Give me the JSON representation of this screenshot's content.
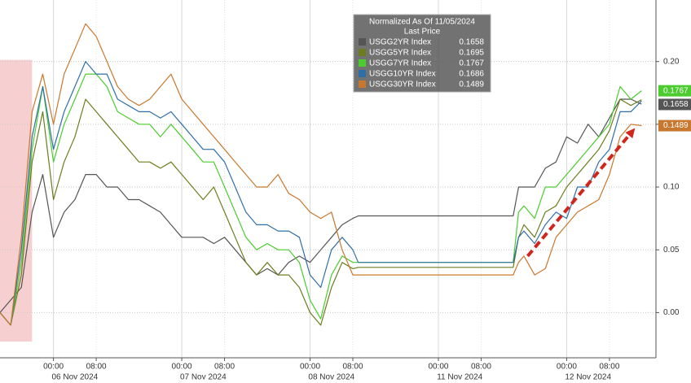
{
  "chart_data": {
    "type": "line",
    "legend": {
      "title": "Normalized As Of 11/05/2024",
      "subtitle": "Last Price",
      "corner": "top-right"
    },
    "x": [
      -10,
      -8,
      -6,
      -4,
      -2,
      0,
      2,
      4,
      6,
      8,
      10,
      12,
      14,
      16,
      18,
      20,
      22,
      24,
      26,
      28,
      30,
      32,
      34,
      36,
      38,
      40,
      42,
      44,
      46,
      48,
      50,
      52,
      54,
      56,
      57,
      86,
      87,
      88,
      90,
      92,
      94,
      96,
      98,
      100,
      102,
      104,
      106,
      108,
      110
    ],
    "xlim": [
      -10,
      112.7
    ],
    "xticks": [
      {
        "value": 0,
        "label": "00:00"
      },
      {
        "value": 8,
        "label": "08:00"
      },
      {
        "value": 24,
        "label": "00:00"
      },
      {
        "value": 32,
        "label": "08:00"
      },
      {
        "value": 48,
        "label": "00:00"
      },
      {
        "value": 56,
        "label": "08:00"
      },
      {
        "value": 72,
        "label": "00:00"
      },
      {
        "value": 80,
        "label": "08:00"
      },
      {
        "value": 96,
        "label": "00:00"
      },
      {
        "value": 104,
        "label": "08:00"
      }
    ],
    "xdates": [
      {
        "value": 4,
        "label": "06 Nov 2024"
      },
      {
        "value": 28,
        "label": "07 Nov 2024"
      },
      {
        "value": 52,
        "label": "08 Nov 2024"
      },
      {
        "value": 76,
        "label": "11 Nov 2024"
      },
      {
        "value": 100,
        "label": "12 Nov 2024"
      }
    ],
    "ylim": [
      -0.036,
      0.249
    ],
    "yticks": [
      {
        "value": 0,
        "label": "0.00"
      },
      0.05,
      {
        "value": 0.1,
        "label": "0.10"
      },
      0.15,
      {
        "value": 0.2,
        "label": "0.20"
      }
    ],
    "grid": true,
    "shade": [
      -10,
      -4
    ],
    "arrow": {
      "x": [
        88.7,
        108.8
      ],
      "y": [
        0.045,
        0.147
      ],
      "color": "#d0261c"
    },
    "series": [
      {
        "name": "USGG2YR Index",
        "color": "#555555",
        "last": 0.1658,
        "tag": true,
        "values": [
          0,
          0.01,
          0.02,
          0.08,
          0.11,
          0.06,
          0.08,
          0.09,
          0.11,
          0.11,
          0.1,
          0.1,
          0.09,
          0.09,
          0.085,
          0.08,
          0.07,
          0.06,
          0.06,
          0.06,
          0.055,
          0.06,
          0.05,
          0.04,
          0.03,
          0.035,
          0.03,
          0.04,
          0.045,
          0.04,
          0.05,
          0.06,
          0.07,
          0.075,
          0.077,
          0.077,
          0.1,
          0.1,
          0.1,
          0.115,
          0.12,
          0.14,
          0.135,
          0.15,
          0.14,
          0.155,
          0.17,
          0.17,
          0.166
        ]
      },
      {
        "name": "USGG5YR Index",
        "color": "#6b7d1e",
        "last": 0.1695,
        "tag": false,
        "values": [
          0,
          -0.01,
          0.03,
          0.12,
          0.16,
          0.09,
          0.12,
          0.14,
          0.17,
          0.16,
          0.15,
          0.14,
          0.13,
          0.12,
          0.12,
          0.115,
          0.12,
          0.11,
          0.1,
          0.09,
          0.1,
          0.08,
          0.06,
          0.04,
          0.03,
          0.04,
          0.03,
          0.03,
          0.02,
          0.0,
          -0.01,
          0.02,
          0.04,
          0.035,
          0.036,
          0.036,
          0.06,
          0.07,
          0.06,
          0.08,
          0.085,
          0.1,
          0.11,
          0.12,
          0.13,
          0.145,
          0.17,
          0.165,
          0.1695
        ]
      },
      {
        "name": "USGG7YR Index",
        "color": "#4ccc2e",
        "last": 0.1767,
        "tag": true,
        "values": [
          0,
          -0.01,
          0.04,
          0.13,
          0.18,
          0.12,
          0.15,
          0.17,
          0.19,
          0.19,
          0.18,
          0.16,
          0.155,
          0.15,
          0.15,
          0.14,
          0.15,
          0.14,
          0.13,
          0.12,
          0.12,
          0.1,
          0.08,
          0.06,
          0.05,
          0.055,
          0.05,
          0.05,
          0.04,
          0.01,
          -0.005,
          0.03,
          0.045,
          0.04,
          0.04,
          0.04,
          0.08,
          0.085,
          0.075,
          0.1,
          0.1,
          0.11,
          0.12,
          0.13,
          0.14,
          0.15,
          0.18,
          0.17,
          0.1767
        ]
      },
      {
        "name": "USGG10YR Index",
        "color": "#2f6fa8",
        "last": 0.1686,
        "tag": false,
        "values": [
          0,
          -0.01,
          0.05,
          0.14,
          0.18,
          0.13,
          0.16,
          0.18,
          0.2,
          0.19,
          0.19,
          0.17,
          0.165,
          0.16,
          0.16,
          0.155,
          0.16,
          0.15,
          0.14,
          0.13,
          0.13,
          0.12,
          0.1,
          0.08,
          0.07,
          0.07,
          0.065,
          0.065,
          0.06,
          0.03,
          0.02,
          0.05,
          0.06,
          0.05,
          0.04,
          0.04,
          0.06,
          0.065,
          0.055,
          0.07,
          0.08,
          0.075,
          0.1,
          0.1,
          0.12,
          0.13,
          0.16,
          0.16,
          0.1686
        ]
      },
      {
        "name": "USGG30YR Index",
        "color": "#c8782e",
        "last": 0.1489,
        "tag": true,
        "values": [
          0,
          -0.01,
          0.06,
          0.16,
          0.19,
          0.15,
          0.19,
          0.21,
          0.23,
          0.22,
          0.2,
          0.18,
          0.17,
          0.165,
          0.17,
          0.18,
          0.19,
          0.17,
          0.16,
          0.15,
          0.14,
          0.13,
          0.12,
          0.11,
          0.1,
          0.1,
          0.11,
          0.095,
          0.09,
          0.08,
          0.075,
          0.08,
          0.05,
          0.03,
          0.03,
          0.03,
          0.04,
          0.045,
          0.03,
          0.035,
          0.06,
          0.07,
          0.08,
          0.085,
          0.09,
          0.11,
          0.14,
          0.15,
          0.1489
        ]
      }
    ]
  }
}
